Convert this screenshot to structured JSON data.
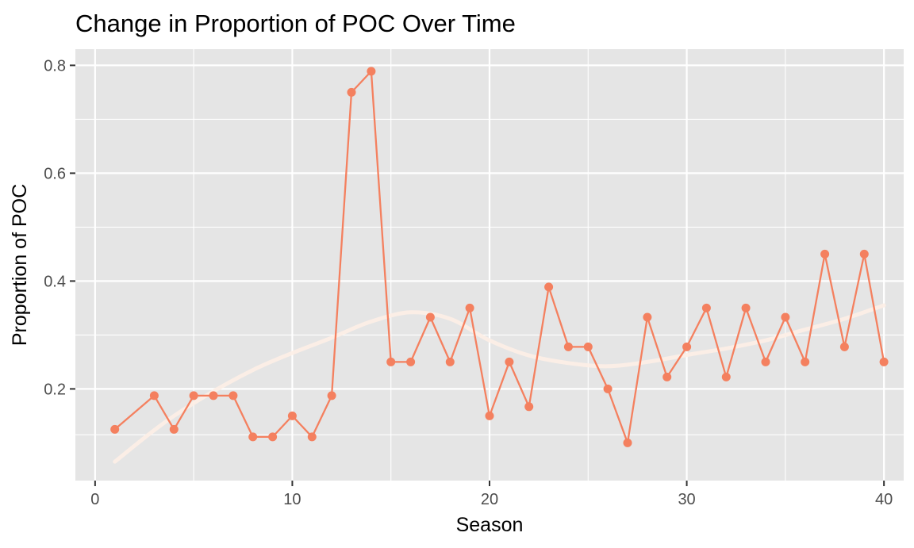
{
  "chart_data": {
    "type": "line",
    "title": "Change in Proportion of POC Over Time",
    "xlabel": "Season",
    "ylabel": "Proportion of POC",
    "xlim": [
      -1,
      41
    ],
    "ylim": [
      0.03,
      0.83
    ],
    "x_ticks": [
      0,
      10,
      20,
      30,
      40
    ],
    "x_tick_labels": [
      "0",
      "10",
      "20",
      "30",
      "40"
    ],
    "y_ticks": [
      0.2,
      0.4,
      0.6,
      0.8
    ],
    "y_tick_labels": [
      "0.2",
      "0.4",
      "0.6",
      "0.8"
    ],
    "grid": true,
    "background": "#e5e5e5",
    "colors": {
      "series": "#f4805f",
      "smooth": "#fdeee6",
      "grid": "#ffffff"
    },
    "series": [
      {
        "x": [
          1,
          3,
          4,
          5,
          6,
          7,
          8,
          9,
          10,
          11,
          12,
          13,
          14,
          15,
          16,
          17,
          18,
          19,
          20,
          21,
          22,
          23,
          24,
          25,
          26,
          27,
          28,
          29,
          30,
          31,
          32,
          33,
          34,
          35,
          36,
          37,
          38,
          39,
          40
        ],
        "values": [
          0.125,
          0.1875,
          0.125,
          0.1875,
          0.1875,
          0.1875,
          0.111,
          0.111,
          0.15,
          0.111,
          0.1875,
          0.75,
          0.789,
          0.25,
          0.25,
          0.333,
          0.25,
          0.35,
          0.15,
          0.25,
          0.167,
          0.389,
          0.278,
          0.278,
          0.2,
          0.1,
          0.333,
          0.222,
          0.278,
          0.35,
          0.222,
          0.35,
          0.25,
          0.333,
          0.25,
          0.45,
          0.278,
          0.45,
          0.25
        ]
      }
    ],
    "smooth_line": {
      "x": [
        1,
        4,
        8,
        12,
        14,
        16,
        18,
        20,
        22,
        24,
        26,
        28,
        30,
        32,
        34,
        36,
        38,
        40
      ],
      "values": [
        0.065,
        0.15,
        0.235,
        0.295,
        0.325,
        0.342,
        0.33,
        0.29,
        0.262,
        0.248,
        0.242,
        0.25,
        0.263,
        0.275,
        0.29,
        0.31,
        0.33,
        0.355
      ]
    }
  }
}
